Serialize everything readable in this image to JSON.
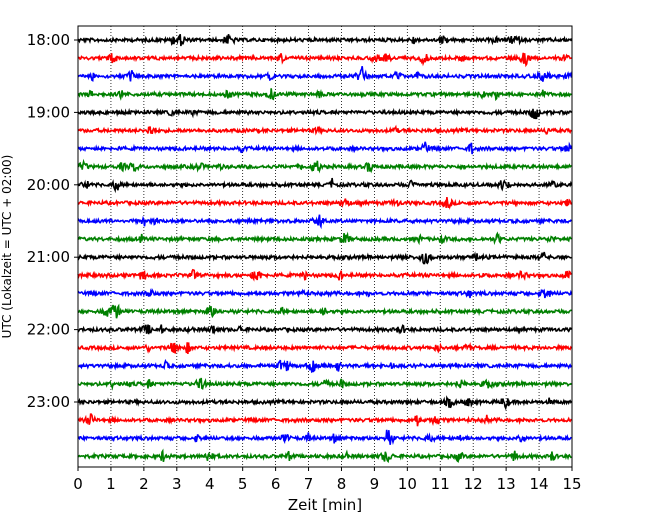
{
  "chart_data": {
    "type": "line",
    "title": "",
    "xlabel": "Zeit  [min]",
    "ylabel": "UTC (Lokalzeit = UTC + 02:00)",
    "xlim": [
      0,
      15
    ],
    "x_ticks": [
      "0",
      "1",
      "2",
      "3",
      "4",
      "5",
      "6",
      "7",
      "8",
      "9",
      "10",
      "11",
      "12",
      "13",
      "14",
      "15"
    ],
    "y_ticks": [
      "18:00",
      "19:00",
      "20:00",
      "21:00",
      "22:00",
      "23:00"
    ],
    "grid": "vertical dotted at each minute",
    "trace_interval_minutes": 15,
    "colors_cycle": [
      "#000000",
      "#ff0000",
      "#0000ff",
      "#008000"
    ],
    "series": [
      {
        "start": "18:00"
      },
      {
        "start": "18:15"
      },
      {
        "start": "18:30"
      },
      {
        "start": "18:45"
      },
      {
        "start": "19:00"
      },
      {
        "start": "19:15"
      },
      {
        "start": "19:30"
      },
      {
        "start": "19:45"
      },
      {
        "start": "20:00"
      },
      {
        "start": "20:15"
      },
      {
        "start": "20:30"
      },
      {
        "start": "20:45"
      },
      {
        "start": "21:00"
      },
      {
        "start": "21:15"
      },
      {
        "start": "21:30"
      },
      {
        "start": "21:45"
      },
      {
        "start": "22:00"
      },
      {
        "start": "22:15"
      },
      {
        "start": "22:30"
      },
      {
        "start": "22:45"
      },
      {
        "start": "23:00"
      },
      {
        "start": "23:15"
      },
      {
        "start": "23:30"
      },
      {
        "start": "23:45"
      }
    ]
  }
}
